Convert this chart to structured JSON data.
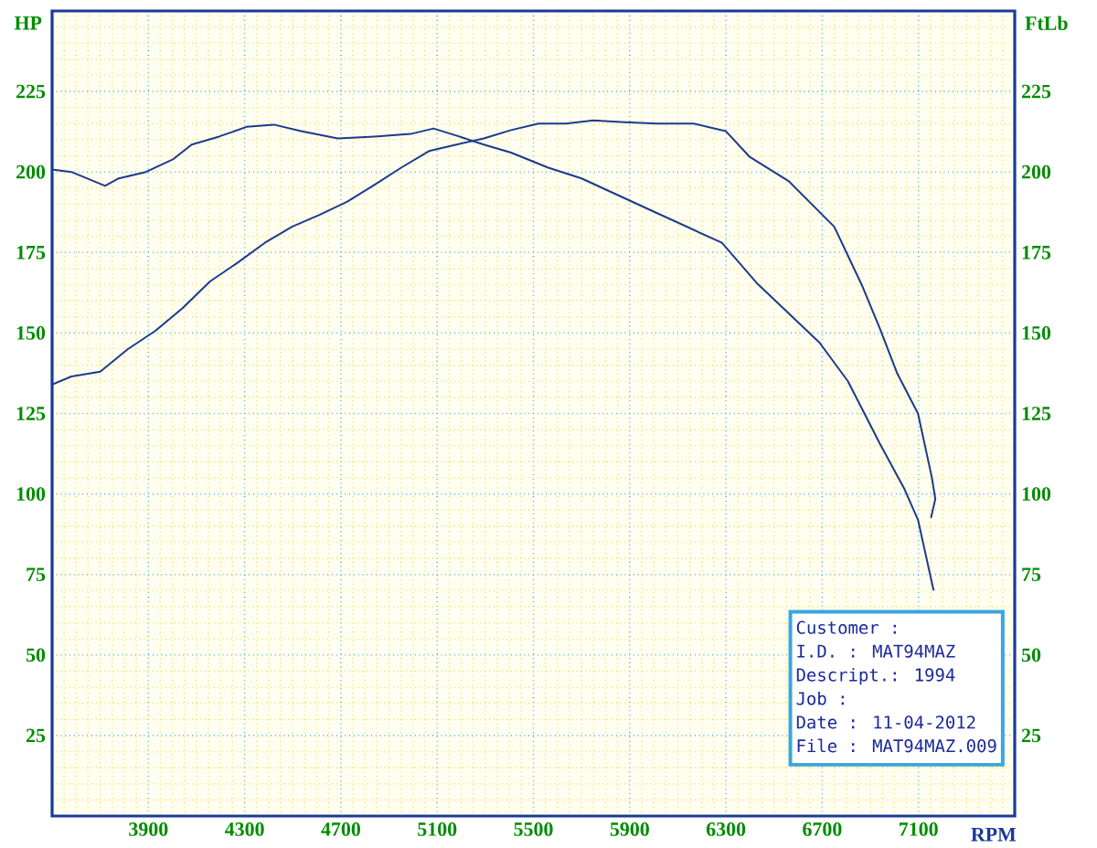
{
  "chart_data": {
    "type": "line",
    "xlabel": "RPM",
    "ylabel": "HP",
    "y2label": "FtLb",
    "xlim": [
      3500,
      7500
    ],
    "xticks": [
      {
        "value": 3550,
        "label": null
      },
      {
        "value": 3600,
        "label": null
      },
      {
        "value": 3650,
        "label": null
      },
      {
        "value": 3700,
        "label": null
      },
      {
        "value": 3750,
        "label": null
      },
      {
        "value": 3800,
        "label": null
      },
      {
        "value": 3850,
        "label": null
      },
      3900,
      {
        "value": 3950,
        "label": null
      },
      {
        "value": 4000,
        "label": null
      },
      {
        "value": 4050,
        "label": null
      },
      {
        "value": 4100,
        "label": null
      },
      {
        "value": 4150,
        "label": null
      },
      {
        "value": 4200,
        "label": null
      },
      {
        "value": 4250,
        "label": null
      },
      4300,
      {
        "value": 4350,
        "label": null
      },
      {
        "value": 4400,
        "label": null
      },
      {
        "value": 4450,
        "label": null
      },
      {
        "value": 4500,
        "label": null
      },
      {
        "value": 4550,
        "label": null
      },
      {
        "value": 4600,
        "label": null
      },
      {
        "value": 4650,
        "label": null
      },
      4700,
      {
        "value": 4750,
        "label": null
      },
      {
        "value": 4800,
        "label": null
      },
      {
        "value": 4850,
        "label": null
      },
      {
        "value": 4900,
        "label": null
      },
      {
        "value": 4950,
        "label": null
      },
      {
        "value": 5000,
        "label": null
      },
      {
        "value": 5050,
        "label": null
      },
      5100,
      {
        "value": 5150,
        "label": null
      },
      {
        "value": 5200,
        "label": null
      },
      {
        "value": 5250,
        "label": null
      },
      {
        "value": 5300,
        "label": null
      },
      {
        "value": 5350,
        "label": null
      },
      {
        "value": 5400,
        "label": null
      },
      {
        "value": 5450,
        "label": null
      },
      5500,
      {
        "value": 5550,
        "label": null
      },
      {
        "value": 5600,
        "label": null
      },
      {
        "value": 5650,
        "label": null
      },
      {
        "value": 5700,
        "label": null
      },
      {
        "value": 5750,
        "label": null
      },
      {
        "value": 5800,
        "label": null
      },
      {
        "value": 5850,
        "label": null
      },
      5900,
      {
        "value": 5950,
        "label": null
      },
      {
        "value": 6000,
        "label": null
      },
      {
        "value": 6050,
        "label": null
      },
      {
        "value": 6100,
        "label": null
      },
      {
        "value": 6150,
        "label": null
      },
      {
        "value": 6200,
        "label": null
      },
      {
        "value": 6250,
        "label": null
      },
      6300,
      {
        "value": 6350,
        "label": null
      },
      {
        "value": 6400,
        "label": null
      },
      {
        "value": 6450,
        "label": null
      },
      {
        "value": 6500,
        "label": null
      },
      {
        "value": 6550,
        "label": null
      },
      {
        "value": 6600,
        "label": null
      },
      {
        "value": 6650,
        "label": null
      },
      6700,
      {
        "value": 6750,
        "label": null
      },
      {
        "value": 6800,
        "label": null
      },
      {
        "value": 6850,
        "label": null
      },
      {
        "value": 6900,
        "label": null
      },
      {
        "value": 6950,
        "label": null
      },
      {
        "value": 7000,
        "label": null
      },
      {
        "value": 7050,
        "label": null
      },
      7100,
      {
        "value": 7150,
        "label": null
      },
      {
        "value": 7200,
        "label": null
      },
      {
        "value": 7250,
        "label": null
      },
      {
        "value": 7300,
        "label": null
      },
      {
        "value": 7350,
        "label": null
      },
      {
        "value": 7400,
        "label": null
      },
      {
        "value": 7450,
        "label": null
      }
    ],
    "ylim": [
      0,
      250
    ],
    "yticks": [
      {
        "value": 5,
        "label": null
      },
      {
        "value": 10,
        "label": null
      },
      {
        "value": 15,
        "label": null
      },
      {
        "value": 20,
        "label": null
      },
      25,
      {
        "value": 30,
        "label": null
      },
      {
        "value": 35,
        "label": null
      },
      {
        "value": 40,
        "label": null
      },
      {
        "value": 45,
        "label": null
      },
      50,
      {
        "value": 55,
        "label": null
      },
      {
        "value": 60,
        "label": null
      },
      {
        "value": 65,
        "label": null
      },
      {
        "value": 70,
        "label": null
      },
      75,
      {
        "value": 80,
        "label": null
      },
      {
        "value": 85,
        "label": null
      },
      {
        "value": 90,
        "label": null
      },
      {
        "value": 95,
        "label": null
      },
      100,
      {
        "value": 105,
        "label": null
      },
      {
        "value": 110,
        "label": null
      },
      {
        "value": 115,
        "label": null
      },
      {
        "value": 120,
        "label": null
      },
      125,
      {
        "value": 130,
        "label": null
      },
      {
        "value": 135,
        "label": null
      },
      {
        "value": 140,
        "label": null
      },
      {
        "value": 145,
        "label": null
      },
      150,
      {
        "value": 155,
        "label": null
      },
      {
        "value": 160,
        "label": null
      },
      {
        "value": 165,
        "label": null
      },
      {
        "value": 170,
        "label": null
      },
      175,
      {
        "value": 180,
        "label": null
      },
      {
        "value": 185,
        "label": null
      },
      {
        "value": 190,
        "label": null
      },
      {
        "value": 195,
        "label": null
      },
      200,
      {
        "value": 205,
        "label": null
      },
      {
        "value": 210,
        "label": null
      },
      {
        "value": 215,
        "label": null
      },
      {
        "value": 220,
        "label": null
      },
      225,
      {
        "value": 230,
        "label": null
      },
      {
        "value": 235,
        "label": null
      },
      {
        "value": 240,
        "label": null
      },
      {
        "value": 245,
        "label": null
      }
    ],
    "y2lim": [
      0,
      250
    ],
    "y2ticks": [
      25,
      50,
      75,
      100,
      125,
      150,
      175,
      200,
      225
    ],
    "grid": true,
    "series": [
      {
        "color": "#1c3a8c",
        "x": [
          3500,
          3580,
          3700,
          3815,
          3928,
          4042,
          4156,
          4270,
          4384,
          4497,
          4611,
          4725,
          4839,
          4952,
          5066,
          5180,
          5294,
          5407,
          5521,
          5635,
          5749,
          5862,
          6014,
          6166,
          6299,
          6397,
          6560,
          6750,
          6867,
          6939,
          7012,
          7098,
          7156,
          7170,
          7152
        ],
        "values": [
          134,
          136.5,
          138,
          145,
          150.6,
          157.7,
          166,
          171.8,
          178,
          183,
          186.7,
          190.7,
          196,
          201.4,
          206.5,
          208.5,
          210.4,
          213,
          215,
          215,
          216,
          215.5,
          215,
          215,
          212.7,
          204.8,
          197.2,
          183,
          164.5,
          151.5,
          137.4,
          125,
          105,
          98.4,
          92.6
        ]
      },
      {
        "color": "#1c3a8c",
        "axis": "y2",
        "x": [
          3500,
          3580,
          3720,
          3777,
          3890,
          4004,
          4080,
          4194,
          4308,
          4421,
          4535,
          4687,
          4839,
          4990,
          5085,
          5180,
          5294,
          5407,
          5559,
          5700,
          5991,
          6283,
          6427,
          6689,
          6807,
          6939,
          7042,
          7098,
          7163
        ],
        "values": [
          200.8,
          200,
          195.7,
          198,
          200,
          204,
          208.5,
          211,
          214,
          214.7,
          212.7,
          210.4,
          211,
          211.8,
          213.5,
          211.3,
          208.5,
          206,
          201.4,
          198,
          188,
          178,
          165.6,
          147,
          135,
          115.7,
          101.5,
          92,
          70
        ]
      }
    ],
    "annotations": [
      "Customer :",
      "I.D. : MAT94MAZ",
      "Descript.: 1994",
      "Job :",
      "Date : 11-04-2012",
      "File : MAT94MAZ.009"
    ]
  }
}
